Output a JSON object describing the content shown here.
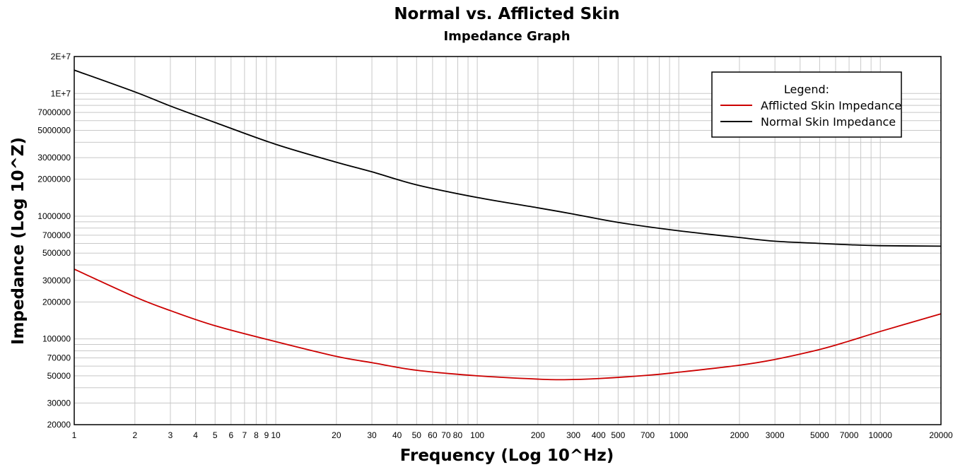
{
  "chart_data": {
    "type": "line",
    "title": "Normal vs. Afflicted Skin",
    "subtitle": "Impedance Graph",
    "xlabel": "Frequency (Log 10^Hz)",
    "ylabel": "Impedance (Log 10^Z)",
    "xscale": "log",
    "yscale": "log",
    "xlim": [
      1,
      20000
    ],
    "ylim": [
      20000,
      20000000
    ],
    "grid": true,
    "x_ticks": [
      {
        "value": 1,
        "label": "1"
      },
      {
        "value": 2,
        "label": "2"
      },
      {
        "value": 3,
        "label": "3"
      },
      {
        "value": 4,
        "label": "4"
      },
      {
        "value": 5,
        "label": "5"
      },
      {
        "value": 6,
        "label": "6"
      },
      {
        "value": 7,
        "label": "7"
      },
      {
        "value": 8,
        "label": "8"
      },
      {
        "value": 9,
        "label": "9"
      },
      {
        "value": 10,
        "label": "10"
      },
      {
        "value": 20,
        "label": "20"
      },
      {
        "value": 30,
        "label": "30"
      },
      {
        "value": 40,
        "label": "40"
      },
      {
        "value": 50,
        "label": "50"
      },
      {
        "value": 60,
        "label": "60"
      },
      {
        "value": 70,
        "label": "70"
      },
      {
        "value": 80,
        "label": "80"
      },
      {
        "value": 100,
        "label": "100"
      },
      {
        "value": 200,
        "label": "200"
      },
      {
        "value": 300,
        "label": "300"
      },
      {
        "value": 400,
        "label": "400"
      },
      {
        "value": 500,
        "label": "500"
      },
      {
        "value": 700,
        "label": "700"
      },
      {
        "value": 1000,
        "label": "1000"
      },
      {
        "value": 2000,
        "label": "2000"
      },
      {
        "value": 3000,
        "label": "3000"
      },
      {
        "value": 5000,
        "label": "5000"
      },
      {
        "value": 7000,
        "label": "7000"
      },
      {
        "value": 10000,
        "label": "10000"
      },
      {
        "value": 20000,
        "label": "20000"
      }
    ],
    "y_ticks": [
      {
        "value": 20000,
        "label": "20000"
      },
      {
        "value": 30000,
        "label": "30000"
      },
      {
        "value": 50000,
        "label": "50000"
      },
      {
        "value": 70000,
        "label": "70000"
      },
      {
        "value": 100000,
        "label": "100000"
      },
      {
        "value": 200000,
        "label": "200000"
      },
      {
        "value": 300000,
        "label": "300000"
      },
      {
        "value": 500000,
        "label": "500000"
      },
      {
        "value": 700000,
        "label": "700000"
      },
      {
        "value": 1000000,
        "label": "1000000"
      },
      {
        "value": 2000000,
        "label": "2000000"
      },
      {
        "value": 3000000,
        "label": "3000000"
      },
      {
        "value": 5000000,
        "label": "5000000"
      },
      {
        "value": 7000000,
        "label": "7000000"
      },
      {
        "value": 10000000,
        "label": "1E+7"
      },
      {
        "value": 20000000,
        "label": "2E+7"
      }
    ],
    "legend": {
      "title": "Legend:",
      "position": "top-right",
      "entries": [
        {
          "name": "Afflicted Skin Impedance",
          "color": "#cc0000"
        },
        {
          "name": "Normal Skin Impedance",
          "color": "#000000"
        }
      ]
    },
    "series": [
      {
        "name": "Afflicted Skin Impedance",
        "color": "#cc0000",
        "x": [
          1,
          2,
          3,
          5,
          10,
          20,
          30,
          50,
          100,
          200,
          270,
          400,
          700,
          1000,
          2000,
          3000,
          5000,
          7000,
          10000,
          20000
        ],
        "y": [
          370000,
          220000,
          170000,
          128000,
          95000,
          72000,
          64000,
          55500,
          50000,
          47000,
          46500,
          47500,
          50500,
          53500,
          61000,
          68000,
          82000,
          96000,
          115000,
          160000
        ]
      },
      {
        "name": "Normal Skin Impedance",
        "color": "#000000",
        "x": [
          1,
          2,
          3,
          5,
          10,
          20,
          30,
          50,
          100,
          200,
          300,
          500,
          1000,
          2000,
          3000,
          5000,
          7000,
          10000,
          20000
        ],
        "y": [
          15500000,
          10300000,
          7900000,
          5800000,
          3850000,
          2750000,
          2300000,
          1800000,
          1420000,
          1170000,
          1040000,
          890000,
          760000,
          670000,
          625000,
          600000,
          585000,
          575000,
          570000
        ]
      }
    ]
  }
}
